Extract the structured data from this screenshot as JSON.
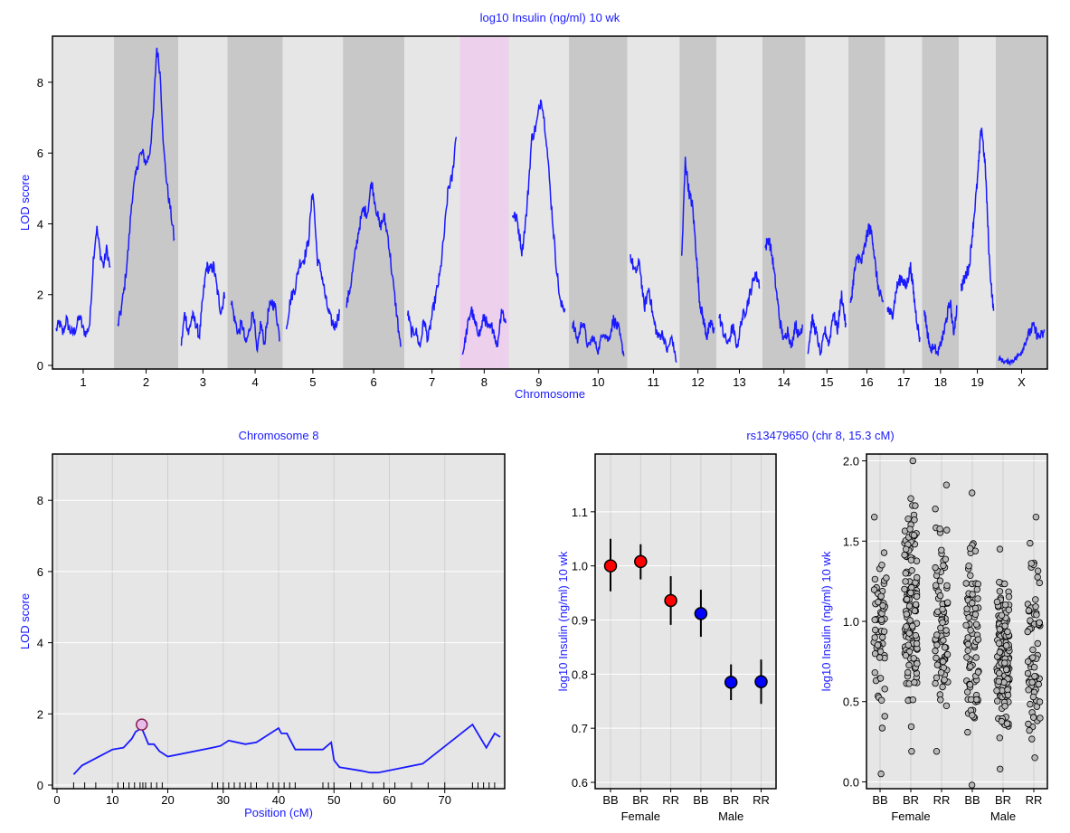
{
  "colors": {
    "accent_blue": "#1a1aff",
    "panel_light": "#e6e6e6",
    "panel_dark": "#c8c8c8",
    "highlight_pink": "#ecd0ec",
    "female_red": "#ff0000",
    "male_blue": "#0000ff",
    "point_gray": "#b8b8b8"
  },
  "chart_data": [
    {
      "id": "genome-scan",
      "type": "line",
      "title": "log10 Insulin (ng/ml) 10 wk",
      "xlabel": "Chromosome",
      "ylabel": "LOD score",
      "ylim": [
        0,
        9.2
      ],
      "yticks": [
        0,
        2,
        4,
        6,
        8
      ],
      "highlighted_chromosome": "8",
      "chromosomes": [
        {
          "name": "1",
          "lod": [
            1.0,
            1.2,
            0.9,
            1.3,
            1.0,
            0.9,
            1.1,
            1.4,
            1.0,
            0.9,
            1.2,
            3.0,
            3.9,
            3.2,
            2.8,
            3.3,
            2.7
          ]
        },
        {
          "name": "2",
          "lod": [
            1.1,
            1.6,
            2.3,
            3.3,
            4.7,
            5.3,
            5.9,
            6.0,
            5.7,
            6.0,
            7.0,
            9.0,
            8.2,
            6.0,
            5.0,
            4.3,
            3.5
          ]
        },
        {
          "name": "3",
          "lod": [
            0.6,
            1.5,
            0.9,
            1.4,
            1.2,
            0.8,
            1.9,
            2.8,
            2.7,
            2.8,
            2.1,
            1.5,
            2.0
          ]
        },
        {
          "name": "4",
          "lod": [
            1.9,
            1.3,
            0.9,
            1.2,
            0.6,
            1.0,
            1.6,
            0.3,
            1.2,
            0.6,
            1.5,
            1.8,
            1.6,
            0.8
          ]
        },
        {
          "name": "5",
          "lod": [
            1.1,
            1.9,
            2.2,
            2.9,
            3.0,
            3.5,
            5.0,
            3.0,
            2.6,
            1.8,
            1.3,
            1.1,
            1.5
          ]
        },
        {
          "name": "6",
          "lod": [
            1.7,
            2.3,
            3.1,
            3.9,
            4.4,
            4.3,
            5.2,
            4.5,
            3.9,
            4.2,
            3.6,
            2.5,
            1.5,
            0.5
          ]
        },
        {
          "name": "7",
          "lod": [
            1.5,
            0.9,
            1.0,
            0.5,
            1.3,
            0.7,
            1.4,
            2.0,
            2.6,
            3.7,
            5.0,
            5.3,
            6.6
          ]
        },
        {
          "name": "8",
          "lod": [
            0.3,
            1.0,
            1.6,
            1.1,
            0.9,
            1.4,
            1.0,
            1.1,
            0.5,
            1.6,
            1.2
          ]
        },
        {
          "name": "9",
          "lod": [
            4.3,
            4.1,
            3.2,
            4.4,
            6.4,
            6.8,
            7.6,
            6.5,
            4.7,
            3.0,
            1.7,
            1.6
          ]
        },
        {
          "name": "10",
          "lod": [
            1.2,
            0.7,
            1.3,
            0.5,
            0.8,
            0.4,
            1.0,
            0.7,
            1.3,
            1.0,
            0.3
          ]
        },
        {
          "name": "11",
          "lod": [
            3.1,
            2.6,
            2.9,
            1.6,
            2.2,
            1.3,
            0.8,
            0.9,
            0.4,
            0.8,
            0.1
          ]
        },
        {
          "name": "12",
          "lod": [
            3.0,
            5.8,
            4.9,
            4.5,
            3.2,
            1.8,
            1.3,
            0.8,
            1.2,
            1.0
          ]
        },
        {
          "name": "13",
          "lod": [
            1.4,
            0.9,
            0.6,
            1.1,
            0.5,
            1.3,
            1.6,
            2.1,
            2.6,
            2.3
          ]
        },
        {
          "name": "14",
          "lod": [
            3.3,
            3.6,
            3.0,
            2.1,
            1.2,
            0.7,
            1.0,
            0.5,
            1.2,
            0.8,
            1.2
          ]
        },
        {
          "name": "15",
          "lod": [
            0.4,
            1.3,
            0.9,
            0.3,
            1.0,
            0.6,
            1.5,
            1.0,
            2.0,
            1.1
          ]
        },
        {
          "name": "16",
          "lod": [
            1.7,
            2.6,
            3.1,
            2.9,
            3.4,
            3.9,
            3.7,
            2.7,
            2.0,
            1.8
          ]
        },
        {
          "name": "17",
          "lod": [
            1.6,
            1.4,
            2.2,
            2.5,
            2.2,
            2.8,
            1.6,
            0.7
          ]
        },
        {
          "name": "18",
          "lod": [
            1.6,
            0.9,
            0.4,
            0.6,
            0.3,
            0.6,
            0.9,
            1.4,
            1.8,
            0.9,
            1.6
          ]
        },
        {
          "name": "19",
          "lod": [
            2.2,
            2.5,
            2.8,
            4.0,
            5.2,
            6.8,
            5.5,
            2.9,
            1.5
          ]
        },
        {
          "name": "X",
          "lod": [
            0.2,
            0.1,
            0.1,
            0.2,
            0.4,
            0.8,
            1.1,
            0.8,
            0.9
          ]
        }
      ]
    },
    {
      "id": "chromosome-8-scan",
      "type": "line",
      "title": "Chromosome 8",
      "xlabel": "Position (cM)",
      "ylabel": "LOD score",
      "xlim": [
        0,
        80
      ],
      "ylim": [
        0,
        9.2
      ],
      "xticks": [
        0,
        10,
        20,
        30,
        40,
        50,
        60,
        70
      ],
      "yticks": [
        0,
        2,
        4,
        6,
        8
      ],
      "x": [
        3,
        4.5,
        10,
        12,
        13.5,
        14.2,
        15.3,
        16.5,
        17.5,
        18.5,
        20,
        28,
        29.5,
        31,
        34,
        36,
        40,
        40.5,
        41.5,
        43,
        48,
        49.5,
        50,
        51,
        55,
        56.5,
        58,
        66,
        75,
        77.5,
        79,
        80
      ],
      "y": [
        0.3,
        0.55,
        1.0,
        1.05,
        1.3,
        1.5,
        1.6,
        1.15,
        1.15,
        0.95,
        0.8,
        1.05,
        1.1,
        1.25,
        1.15,
        1.2,
        1.6,
        1.45,
        1.45,
        1.0,
        1.0,
        1.2,
        0.7,
        0.5,
        0.4,
        0.35,
        0.35,
        0.6,
        1.7,
        1.05,
        1.45,
        1.35
      ],
      "marker": {
        "x": 15.3,
        "y": 1.7
      },
      "rug": [
        3,
        5,
        7,
        11,
        12,
        13,
        14,
        15,
        15.5,
        16,
        17,
        18,
        19,
        28,
        29,
        30,
        31,
        32,
        33,
        34,
        35,
        36,
        38,
        39,
        40,
        41,
        42,
        43,
        48,
        49,
        50,
        53,
        55,
        57,
        59,
        61,
        64,
        67,
        70,
        75,
        76,
        77,
        78,
        79
      ]
    },
    {
      "id": "effect-plot",
      "type": "scatter",
      "title": "rs13479650 (chr 8, 15.3 cM)",
      "ylabel": "log10 Insulin (ng/ml) 10 wk",
      "ylim": [
        0.595,
        1.2
      ],
      "yticks": [
        0.6,
        0.7,
        0.8,
        0.9,
        1.0,
        1.1
      ],
      "categories": [
        "BB",
        "BR",
        "RR",
        "BB",
        "BR",
        "RR"
      ],
      "groups": [
        "Female",
        "Male"
      ],
      "means": [
        1.0,
        1.008,
        0.936,
        0.912,
        0.785,
        0.786
      ],
      "lower": [
        0.953,
        0.975,
        0.891,
        0.869,
        0.752,
        0.745
      ],
      "upper": [
        1.05,
        1.04,
        0.981,
        0.956,
        0.818,
        0.827
      ],
      "sex": [
        "Female",
        "Female",
        "Female",
        "Male",
        "Male",
        "Male"
      ]
    },
    {
      "id": "phenotype-strip",
      "type": "scatter",
      "ylabel": "log10 Insulin (ng/ml) 10 wk",
      "ylim": [
        -0.02,
        2.02
      ],
      "yticks": [
        0.0,
        0.5,
        1.0,
        1.5,
        2.0
      ],
      "categories": [
        "BB",
        "BR",
        "RR",
        "BB",
        "BR",
        "RR"
      ],
      "groups": [
        "Female",
        "Male"
      ],
      "counts": [
        60,
        130,
        80,
        80,
        140,
        75
      ],
      "ranges": [
        [
          0.05,
          1.65
        ],
        [
          0.19,
          2.0
        ],
        [
          0.19,
          1.85
        ],
        [
          -0.02,
          1.8
        ],
        [
          0.08,
          1.45
        ],
        [
          0.15,
          1.65
        ]
      ],
      "centers": [
        0.98,
        1.0,
        0.93,
        0.92,
        0.79,
        0.79
      ]
    }
  ]
}
